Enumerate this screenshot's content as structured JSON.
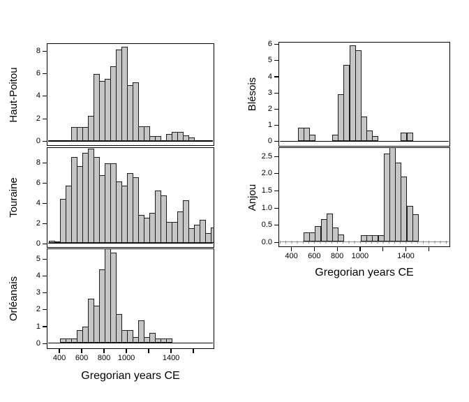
{
  "figure_background": "#ffffff",
  "bar_fill_color": "#c6c6c6",
  "bar_border_color": "#1c1c1c",
  "axis_color": "#000000",
  "anjou_zero_line_color": "#8f8f8f",
  "x_axis": {
    "title": "Gregorian years CE",
    "min_year": 287,
    "max_year": 1787,
    "ticks": [
      {
        "year": 400,
        "label": "400"
      },
      {
        "year": 600,
        "label": "600"
      },
      {
        "year": 800,
        "label": "800"
      },
      {
        "year": 1000,
        "label": "1000"
      },
      {
        "year": 1200,
        "label": ""
      },
      {
        "year": 1400,
        "label": "1400"
      },
      {
        "year": 1600,
        "label": ""
      }
    ]
  },
  "chart_data": [
    {
      "type": "bar",
      "subtype": "histogram",
      "region": "Haut-Poitou",
      "column": "left",
      "bin_width_years": 50,
      "first_bin_start_year": 500,
      "values": [
        1.2,
        1.2,
        1.2,
        2.2,
        5.9,
        5.3,
        5.5,
        6.6,
        8.1,
        8.3,
        4.9,
        5.2,
        1.3,
        1.3,
        0.4,
        0.4,
        0,
        0.6,
        0.8,
        0.8,
        0.5,
        0.3
      ],
      "y_ticks": [
        "0",
        "2",
        "4",
        "6",
        "8"
      ],
      "zero_line": "black"
    },
    {
      "type": "bar",
      "subtype": "histogram",
      "region": "Touraine",
      "column": "left",
      "bin_width_years": 50,
      "first_bin_start_year": 300,
      "values": [
        0.2,
        0.15,
        4.4,
        5.7,
        8.5,
        7.6,
        8.9,
        9.3,
        8.5,
        6.7,
        7.9,
        7.9,
        6.1,
        5.7,
        6.9,
        6.5,
        2.8,
        2.5,
        3.0,
        5.2,
        4.7,
        2.1,
        2.1,
        3.1,
        4.2,
        1.5,
        1.8,
        2.3,
        1.0,
        1.55
      ],
      "y_ticks": [
        "0",
        "2",
        "4",
        "6",
        "8"
      ],
      "zero_line": "black"
    },
    {
      "type": "bar",
      "subtype": "histogram",
      "region": "Orléanais",
      "column": "left",
      "bin_width_years": 50,
      "first_bin_start_year": 400,
      "values": [
        0.25,
        0.25,
        0.25,
        0.75,
        0.95,
        2.6,
        2.2,
        4.35,
        5.65,
        5.35,
        1.7,
        0.75,
        0.75,
        0.35,
        1.35,
        0.35,
        0.6,
        0.25,
        0.25,
        0.25
      ],
      "y_ticks": [
        "0",
        "1",
        "2",
        "3",
        "4",
        "5"
      ],
      "zero_line": "black"
    },
    {
      "type": "bar",
      "subtype": "histogram",
      "region": "Blésois",
      "column": "right",
      "bin_width_years": 50,
      "first_bin_start_year": 450,
      "values": [
        0.8,
        0.8,
        0.4,
        0,
        0,
        0,
        0.4,
        2.9,
        4.7,
        5.9,
        5.6,
        1.5,
        0.65,
        0.3,
        0,
        0,
        0,
        0,
        0.5,
        0.5
      ],
      "y_ticks": [
        "0",
        "1",
        "2",
        "3",
        "4",
        "5",
        "6"
      ],
      "zero_line": "black"
    },
    {
      "type": "bar",
      "subtype": "histogram",
      "region": "Anjou",
      "column": "right",
      "bin_width_years": 50,
      "first_bin_start_year": 500,
      "values": [
        0.27,
        0.27,
        0.46,
        0.66,
        0.81,
        0.41,
        0.21,
        0,
        0,
        0,
        0.18,
        0.18,
        0.18,
        0.18,
        2.57,
        2.77,
        2.3,
        1.9,
        1.05,
        0.8
      ],
      "y_ticks": [
        "0.0",
        "0.5",
        "1.0",
        "1.5",
        "2.0",
        "2.5"
      ],
      "zero_line": "gray-binned"
    }
  ]
}
